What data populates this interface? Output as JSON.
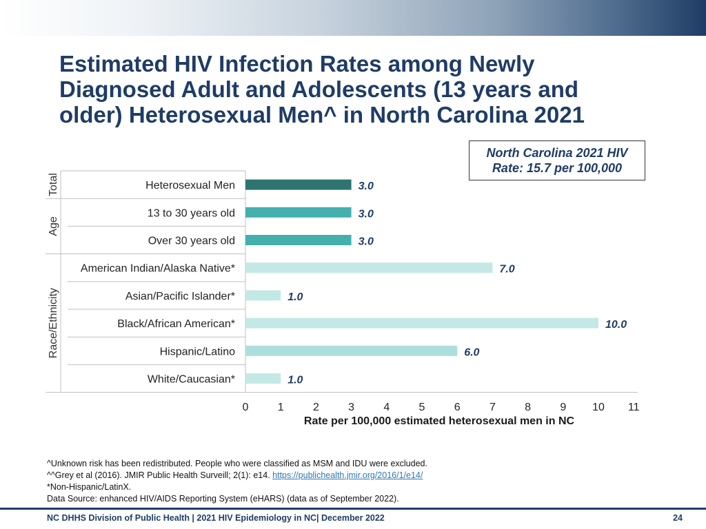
{
  "slide": {
    "title": "Estimated HIV Infection Rates among Newly Diagnosed Adult and Adolescents (13 years and older) Heterosexual Men^ in North Carolina 2021",
    "rate_box": {
      "line1": "North Carolina 2021 HIV",
      "line2": "Rate: 15.7 per 100,000"
    }
  },
  "chart_data": {
    "type": "bar",
    "orientation": "horizontal",
    "title": "Estimated HIV Infection Rates among Newly Diagnosed Adult and Adolescents (13 years and older) Heterosexual Men^ in North Carolina 2021",
    "xlabel": "Rate per 100,000 estimated heterosexual men in NC",
    "xlim": [
      0,
      11
    ],
    "xticks": [
      "0",
      "1",
      "2",
      "3",
      "4",
      "5",
      "6",
      "7",
      "8",
      "9",
      "10",
      "11"
    ],
    "grid": false,
    "groups": [
      {
        "label": "Total",
        "count": 1
      },
      {
        "label": "Age",
        "count": 2
      },
      {
        "label": "Race/Ethnicity",
        "count": 5
      }
    ],
    "categories": [
      "Heterosexual Men",
      "13 to 30 years old",
      "Over 30 years old",
      "American Indian/Alaska Native*",
      "Asian/Pacific Islander*",
      "Black/African American*",
      "Hispanic/Latino",
      "White/Caucasian*"
    ],
    "values": [
      3.0,
      3.0,
      3.0,
      7.0,
      1.0,
      10.0,
      6.0,
      1.0
    ],
    "value_labels": [
      "3.0",
      "3.0",
      "3.0",
      "7.0",
      "1.0",
      "10.0",
      "6.0",
      "1.0"
    ],
    "bar_colors": [
      "#2e7470",
      "#43b0ae",
      "#43b0ae",
      "#c4e8e6",
      "#c4e8e6",
      "#c4e8e6",
      "#acdfdc",
      "#c4e8e6"
    ]
  },
  "footnotes": {
    "line1": "^Unknown risk has been redistributed. People who were classified as MSM and IDU were excluded.",
    "line2_prefix": "^^Grey et al (2016). JMIR Public Health Surveill; 2(1): e14. ",
    "line2_link": "https://publichealth.jmir.org/2016/1/e14/",
    "line3": "*Non-Hispanic/LatinX.",
    "line4": "Data Source: enhanced HIV/AIDS Reporting System (eHARS) (data as of September 2022)."
  },
  "footer": {
    "text": "NC DHHS Division of Public Health | 2021 HIV Epidemiology in NC| December 2022",
    "page": "24"
  }
}
